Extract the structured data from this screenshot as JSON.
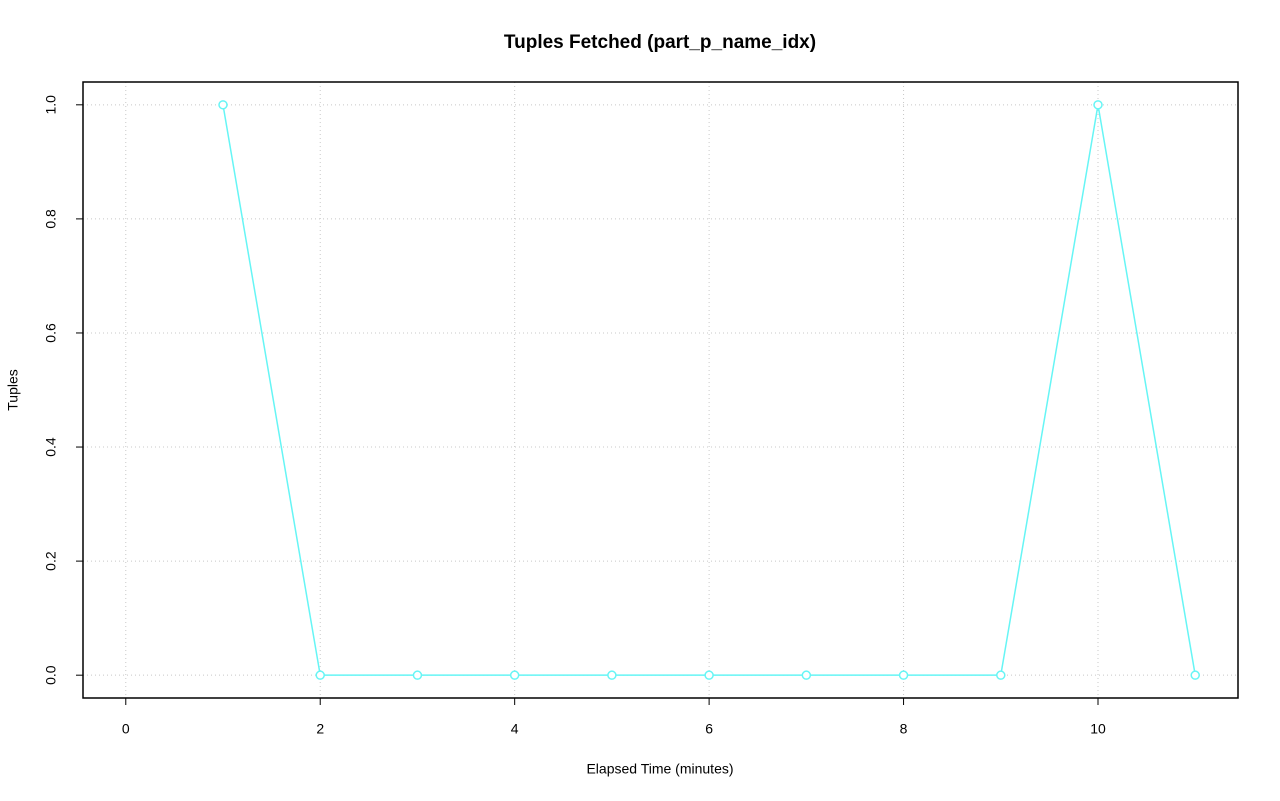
{
  "chart_data": {
    "type": "line",
    "title": "Tuples Fetched (part_p_name_idx)",
    "xlabel": "Elapsed Time (minutes)",
    "ylabel": "Tuples",
    "x": [
      1,
      2,
      3,
      4,
      5,
      6,
      7,
      8,
      9,
      10,
      11
    ],
    "series": [
      {
        "name": "part_p_name_idx",
        "color": "#66f5f5",
        "values": [
          1,
          0,
          0,
          0,
          0,
          0,
          0,
          0,
          0,
          1,
          0
        ]
      }
    ],
    "xlim": [
      -0.44,
      11.44
    ],
    "ylim": [
      -0.04,
      1.04
    ],
    "xticks": [
      0,
      2,
      4,
      6,
      8,
      10
    ],
    "yticks": [
      {
        "value": 0,
        "label": "0.0"
      },
      {
        "value": 0.2,
        "label": "0.2"
      },
      {
        "value": 0.4,
        "label": "0.4"
      },
      {
        "value": 0.6,
        "label": "0.6"
      },
      {
        "value": 0.8,
        "label": "0.8"
      },
      {
        "value": 1,
        "label": "1.0"
      }
    ],
    "grid": true,
    "markers": true
  }
}
